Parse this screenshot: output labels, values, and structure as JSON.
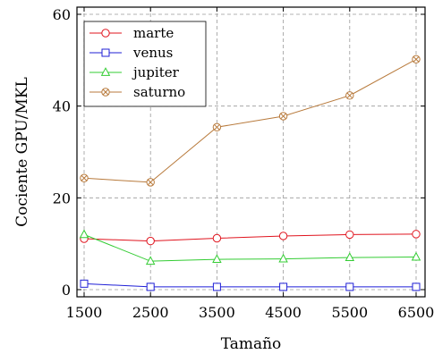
{
  "chart_data": {
    "type": "line",
    "title": "",
    "xlabel": "Tamaño",
    "ylabel": "Cociente GPU/MKL",
    "x": [
      1500,
      2500,
      3500,
      4500,
      5500,
      6500
    ],
    "xticks": [
      "1500",
      "2500",
      "3500",
      "4500",
      "5500",
      "6500"
    ],
    "yticks": [
      "0",
      "20",
      "40",
      "60"
    ],
    "xlim": [
      1500,
      6500
    ],
    "ylim": [
      0,
      60
    ],
    "grid": true,
    "legend_position": "top-left",
    "series": [
      {
        "name": "marte",
        "color": "#e0141e",
        "marker": "circle",
        "values": [
          11.1,
          10.6,
          11.2,
          11.7,
          12.0,
          12.1
        ]
      },
      {
        "name": "venus",
        "color": "#1f1fd6",
        "marker": "square",
        "values": [
          1.3,
          0.6,
          0.6,
          0.6,
          0.6,
          0.6
        ]
      },
      {
        "name": "jupiter",
        "color": "#33cc33",
        "marker": "triangle",
        "values": [
          12.0,
          6.2,
          6.6,
          6.7,
          7.0,
          7.1
        ]
      },
      {
        "name": "saturno",
        "color": "#b87a3c",
        "marker": "circle-cross",
        "values": [
          24.3,
          23.4,
          35.4,
          37.8,
          42.3,
          50.2
        ]
      }
    ]
  }
}
